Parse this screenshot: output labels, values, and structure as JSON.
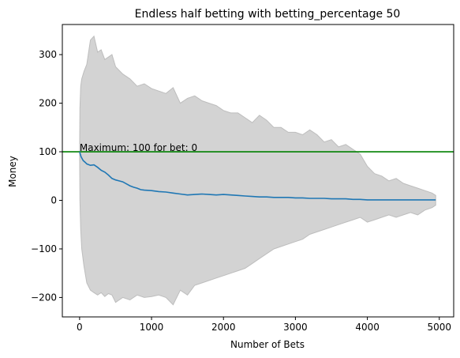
{
  "chart_data": {
    "type": "line",
    "title": "Endless half betting with betting_percentage 50",
    "xlabel": "Number of Bets",
    "ylabel": "Money",
    "xlim": [
      -240,
      5200
    ],
    "ylim": [
      -240,
      362
    ],
    "x_ticks": [
      0,
      1000,
      2000,
      3000,
      4000,
      5000
    ],
    "y_ticks": [
      -200,
      -100,
      0,
      100,
      200,
      300
    ],
    "x_tick_labels": [
      "0",
      "1000",
      "2000",
      "3000",
      "4000",
      "5000"
    ],
    "y_tick_labels": [
      "−200",
      "−100",
      "0",
      "100",
      "200",
      "300"
    ],
    "grid": false,
    "legend": "none",
    "colors": {
      "mean": "#1f77b4",
      "band": "#d3d3d3",
      "band_edge": "#bdbdbd",
      "max_line": "#008000"
    },
    "annotation": {
      "text": "Maximum: 100 for bet: 0",
      "x": 0,
      "y": 100
    },
    "max_line": {
      "y": 100
    },
    "series": [
      {
        "role": "mean",
        "x": [
          0,
          20,
          50,
          80,
          100,
          150,
          200,
          250,
          300,
          350,
          400,
          450,
          500,
          550,
          600,
          650,
          700,
          750,
          800,
          850,
          900,
          1000,
          1100,
          1200,
          1300,
          1400,
          1500,
          1600,
          1700,
          1800,
          1900,
          2000,
          2100,
          2200,
          2300,
          2400,
          2500,
          2600,
          2700,
          2800,
          2900,
          3000,
          3100,
          3200,
          3300,
          3400,
          3500,
          3600,
          3700,
          3800,
          3900,
          4000,
          4200,
          4400,
          4600,
          4800,
          4950
        ],
        "y": [
          100,
          90,
          82,
          78,
          75,
          72,
          73,
          68,
          62,
          58,
          52,
          45,
          42,
          40,
          38,
          34,
          30,
          27,
          25,
          22,
          21,
          20,
          18,
          17,
          15,
          13,
          11,
          12,
          13,
          12,
          11,
          12,
          11,
          10,
          9,
          8,
          7,
          7,
          6,
          6,
          6,
          5,
          5,
          4,
          4,
          4,
          3,
          3,
          3,
          2,
          2,
          1,
          1,
          1,
          1,
          1,
          1
        ]
      },
      {
        "role": "band-upper",
        "x": [
          0,
          5,
          15,
          30,
          60,
          100,
          150,
          200,
          250,
          300,
          350,
          400,
          450,
          500,
          600,
          700,
          800,
          900,
          1000,
          1100,
          1200,
          1300,
          1400,
          1500,
          1600,
          1700,
          1800,
          1900,
          2000,
          2100,
          2200,
          2300,
          2400,
          2500,
          2600,
          2700,
          2800,
          2900,
          3000,
          3100,
          3200,
          3300,
          3400,
          3500,
          3600,
          3700,
          3800,
          3900,
          4000,
          4100,
          4200,
          4300,
          4400,
          4500,
          4600,
          4700,
          4800,
          4900,
          4950
        ],
        "y": [
          100,
          190,
          235,
          250,
          265,
          280,
          330,
          338,
          305,
          310,
          290,
          295,
          300,
          275,
          260,
          250,
          235,
          240,
          230,
          225,
          220,
          232,
          200,
          210,
          215,
          205,
          200,
          195,
          185,
          180,
          180,
          170,
          160,
          175,
          165,
          150,
          150,
          140,
          140,
          135,
          145,
          135,
          120,
          125,
          110,
          115,
          105,
          95,
          70,
          55,
          50,
          40,
          45,
          35,
          30,
          25,
          20,
          15,
          10
        ]
      },
      {
        "role": "band-lower",
        "x": [
          0,
          5,
          15,
          30,
          60,
          100,
          150,
          200,
          250,
          300,
          350,
          400,
          450,
          500,
          600,
          700,
          800,
          900,
          1000,
          1100,
          1200,
          1300,
          1400,
          1500,
          1600,
          1700,
          1800,
          1900,
          2000,
          2100,
          2200,
          2300,
          2400,
          2500,
          2600,
          2700,
          2800,
          2900,
          3000,
          3100,
          3200,
          3300,
          3400,
          3500,
          3600,
          3700,
          3800,
          3900,
          4000,
          4100,
          4200,
          4300,
          4400,
          4500,
          4600,
          4700,
          4800,
          4900,
          4950
        ],
        "y": [
          100,
          0,
          -60,
          -100,
          -135,
          -170,
          -185,
          -190,
          -195,
          -190,
          -198,
          -192,
          -195,
          -210,
          -200,
          -205,
          -195,
          -200,
          -198,
          -195,
          -200,
          -215,
          -185,
          -195,
          -175,
          -170,
          -165,
          -160,
          -155,
          -150,
          -145,
          -140,
          -130,
          -120,
          -110,
          -100,
          -95,
          -90,
          -85,
          -80,
          -70,
          -65,
          -60,
          -55,
          -50,
          -45,
          -40,
          -35,
          -45,
          -40,
          -35,
          -30,
          -35,
          -30,
          -25,
          -30,
          -20,
          -15,
          -10
        ]
      }
    ]
  }
}
